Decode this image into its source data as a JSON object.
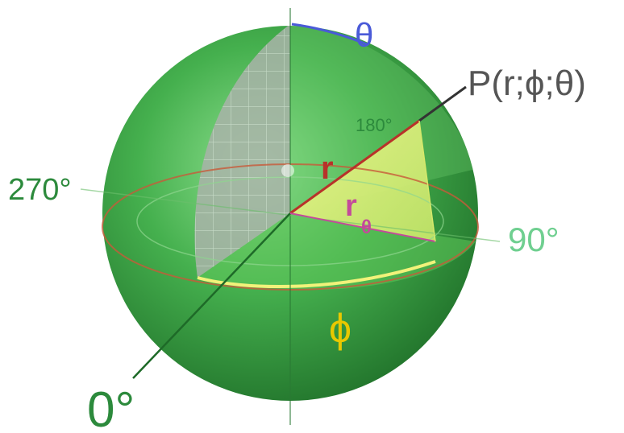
{
  "labels": {
    "theta_top": "θ",
    "point": "P(r;ϕ;θ)",
    "deg_180": "180°",
    "deg_270": "270°",
    "deg_90": "90°",
    "deg_0": "0°",
    "r": "r",
    "r_theta": "r",
    "r_theta_sub": "θ",
    "phi": "ϕ"
  },
  "colors": {
    "sphere": "#3fae4a",
    "sphere_dark": "#1f6e2a",
    "grid_plane": "#9aa69a",
    "phi_sector": "#e6f07a",
    "equator": "#c85a3a",
    "theta_arc": "#4a5ad8",
    "label_gray": "#555555",
    "label_green_dark": "#2c8a3c",
    "label_green_light": "#6fcf90",
    "label_red": "#b8322a",
    "label_magenta": "#c44a9a",
    "label_yellow": "#e8c800"
  }
}
